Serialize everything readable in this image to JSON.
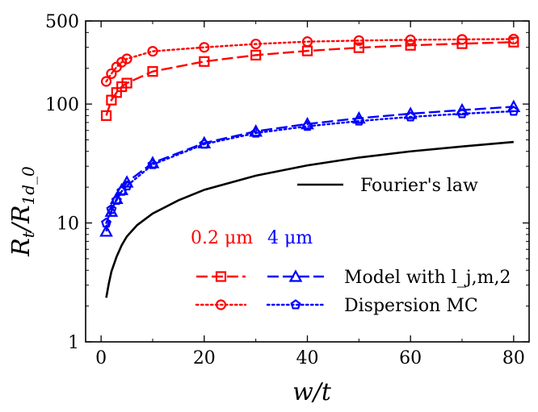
{
  "chart_data": {
    "type": "line",
    "xlabel": "w/t",
    "ylabel": "R_t/R_1d_0",
    "xlim": [
      -3,
      83
    ],
    "ylim": [
      1,
      500
    ],
    "yscale": "log",
    "grid": false,
    "x_ticks": [
      0,
      20,
      40,
      60,
      80
    ],
    "y_ticks": [
      1,
      10,
      100,
      500
    ],
    "legend_groups": [
      "0.2 μm",
      "4 μm"
    ],
    "series": [
      {
        "id": "r_model",
        "color": "#ff0000",
        "dash": "dashed",
        "marker": "square",
        "x": [
          1,
          2,
          3,
          4,
          5,
          10,
          20,
          30,
          40,
          50,
          60,
          70,
          80
        ],
        "y": [
          80,
          108,
          125,
          140,
          150,
          188,
          228,
          258,
          280,
          298,
          312,
          322,
          332
        ]
      },
      {
        "id": "r_mc",
        "color": "#ff0000",
        "dash": "dotted",
        "marker": "circle",
        "x": [
          1,
          2,
          3,
          4,
          5,
          10,
          20,
          30,
          40,
          50,
          60,
          70,
          80
        ],
        "y": [
          155,
          180,
          205,
          225,
          240,
          278,
          300,
          320,
          335,
          342,
          347,
          350,
          352
        ]
      },
      {
        "id": "b_model",
        "color": "#0000ff",
        "dash": "dashed",
        "marker": "triangle",
        "x": [
          1,
          2,
          3,
          4,
          5,
          10,
          20,
          30,
          40,
          50,
          60,
          70,
          80
        ],
        "y": [
          8.5,
          12.5,
          16,
          19,
          22,
          32,
          47,
          59,
          68,
          76,
          83,
          89,
          95
        ]
      },
      {
        "id": "b_mc",
        "color": "#0000ff",
        "dash": "dotted",
        "marker": "pentagon",
        "x": [
          1,
          2,
          3,
          4,
          5,
          10,
          20,
          30,
          40,
          50,
          60,
          70,
          80
        ],
        "y": [
          10,
          13,
          15.5,
          18.5,
          20.5,
          31,
          46,
          57,
          65,
          72,
          78,
          83,
          87
        ]
      },
      {
        "id": "fourier",
        "name": "Fourier's law",
        "color": "#000000",
        "dash": "solid",
        "marker": "none",
        "x": [
          1,
          1.5,
          2,
          3,
          4,
          5,
          7,
          10,
          15,
          20,
          30,
          40,
          50,
          60,
          70,
          80
        ],
        "y": [
          2.35,
          3.1,
          3.9,
          5.2,
          6.5,
          7.7,
          9.6,
          12,
          15.5,
          19,
          25,
          30.5,
          35.5,
          40,
          44,
          48
        ]
      }
    ],
    "legend": [
      {
        "text": "Fourier's law",
        "series": [
          "fourier"
        ]
      },
      {
        "text": "Model with l_j,m,2",
        "series": [
          "r_model",
          "b_model"
        ]
      },
      {
        "text": "Dispersion MC",
        "series": [
          "r_mc",
          "b_mc"
        ]
      }
    ]
  }
}
